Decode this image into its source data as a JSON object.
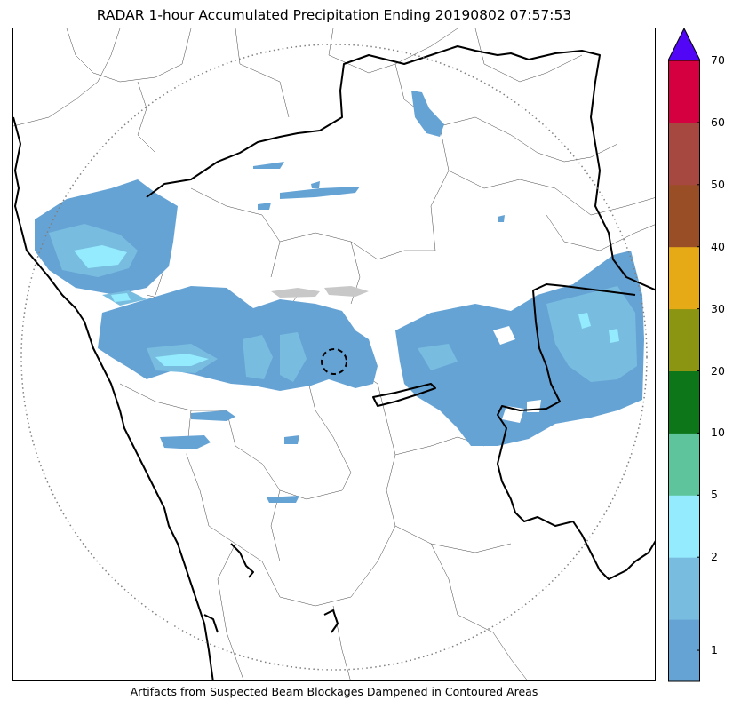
{
  "title": "RADAR 1-hour Accumulated Precipitation Ending 20190802 07:57:53",
  "caption": "Artifacts from Suspected Beam Blockages Dampened in Contoured Areas",
  "colorbar": {
    "labels": [
      "1",
      "2",
      "5",
      "10",
      "20",
      "30",
      "40",
      "50",
      "60",
      "70"
    ],
    "colors": [
      "#66a3d5",
      "#78bde0",
      "#94ebfd",
      "#5ec49b",
      "#0d7619",
      "#8c9512",
      "#e7aa17",
      "#9a4e25",
      "#a64740",
      "#d5003f"
    ],
    "over_color": "#5106f6"
  },
  "map": {
    "precip_colors": {
      "light": "#66a3d5",
      "mid": "#78bde0",
      "heavy": "#94ebfd"
    },
    "range_ring": "dotted",
    "blockage_marker": "dashed-circle"
  }
}
